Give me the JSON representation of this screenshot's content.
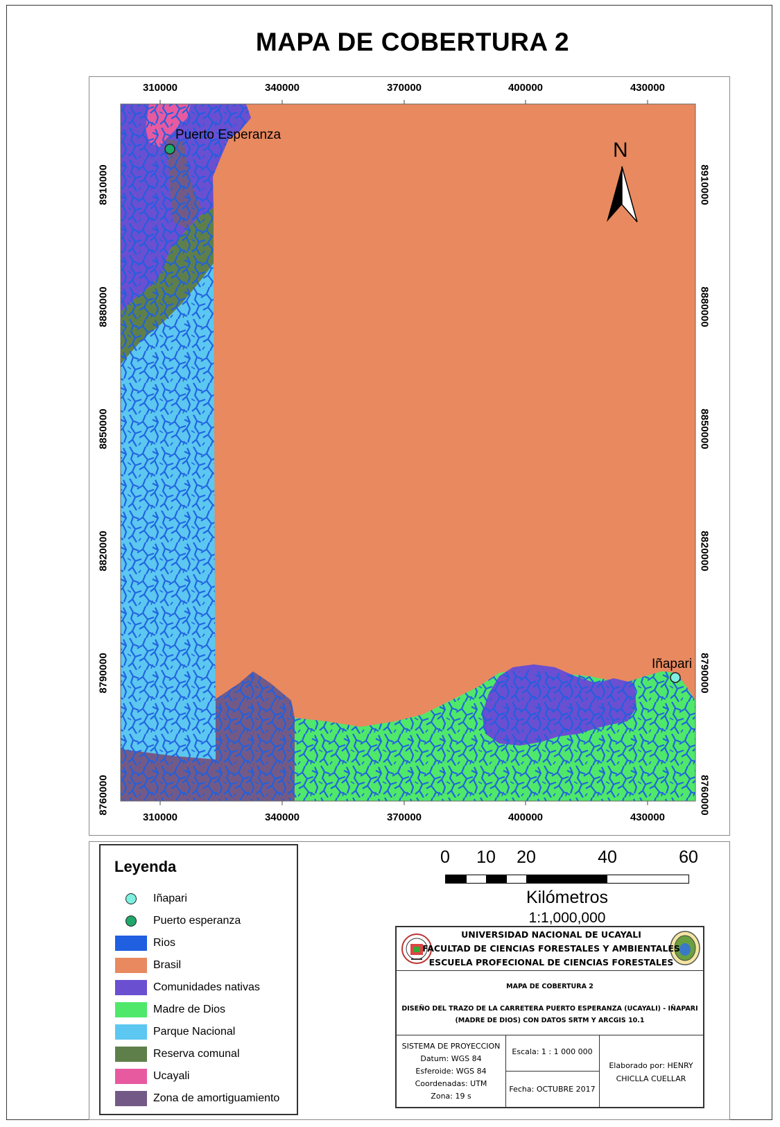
{
  "title": "MAPA DE COBERTURA 2",
  "grid": {
    "x_ticks": [
      "310000",
      "340000",
      "370000",
      "400000",
      "430000"
    ],
    "y_ticks": [
      "8910000",
      "8880000",
      "8850000",
      "8820000",
      "8790000",
      "8760000"
    ]
  },
  "places": {
    "puerto": "Puerto Esperanza",
    "inapari": "Iñapari"
  },
  "north_label": "N",
  "colors": {
    "rios": "#1f5fe0",
    "brasil": "#e8895f",
    "comunidades": "#6a4fd1",
    "madre": "#4fe86a",
    "parque": "#5cc7f0",
    "reserva": "#5e7f4a",
    "ucayali": "#e85aa0",
    "zona": "#735a86"
  },
  "legend": {
    "title": "Leyenda",
    "items": [
      {
        "label": "Iñapari",
        "type": "dot",
        "color": "#7ef0e0"
      },
      {
        "label": "Puerto esperanza",
        "type": "dot",
        "color": "#1fa86a"
      },
      {
        "label": "Rios",
        "type": "swatch",
        "color": "#1f5fe0"
      },
      {
        "label": "Brasil",
        "type": "swatch",
        "color": "#e8895f"
      },
      {
        "label": "Comunidades nativas",
        "type": "swatch",
        "color": "#6a4fd1"
      },
      {
        "label": "Madre de Dios",
        "type": "swatch",
        "color": "#4fe86a"
      },
      {
        "label": "Parque Nacional",
        "type": "swatch",
        "color": "#5cc7f0"
      },
      {
        "label": "Reserva comunal",
        "type": "swatch",
        "color": "#5e7f4a"
      },
      {
        "label": "Ucayali",
        "type": "swatch",
        "color": "#e85aa0"
      },
      {
        "label": "Zona de amortiguamiento",
        "type": "swatch",
        "color": "#735a86"
      }
    ]
  },
  "scale": {
    "ticks": [
      "0",
      "10",
      "20",
      "40",
      "60"
    ],
    "unit": "Kilómetros",
    "ratio": "1:1,000,000"
  },
  "info": {
    "univ1": "UNIVERSIDAD NACIONAL DE UCAYALI",
    "univ2": "FACULTAD DE CIENCIAS FORESTALES Y AMBIENTALES",
    "univ3": "ESCUELA PROFECIONAL DE CIENCIAS FORESTALES",
    "map_title": "MAPA DE COBERTURA 2",
    "design1": "DISEÑO DEL TRAZO DE LA CARRETERA PUERTO ESPERANZA (UCAYALI) - IÑAPARI",
    "design2": "(MADRE DE DIOS) CON DATOS SRTM Y ARCGIS 10.1",
    "proj": [
      "SISTEMA DE PROYECCION",
      "Datum: WGS 84",
      "Esferoide: WGS 84",
      "Coordenadas: UTM",
      "Zona: 19 s"
    ],
    "escala": "Escala: 1 : 1 000 000",
    "fecha": "Fecha: OCTUBRE 2017",
    "autor1": "Elaborado por:  HENRY",
    "autor2": "CHICLLA CUELLAR"
  }
}
